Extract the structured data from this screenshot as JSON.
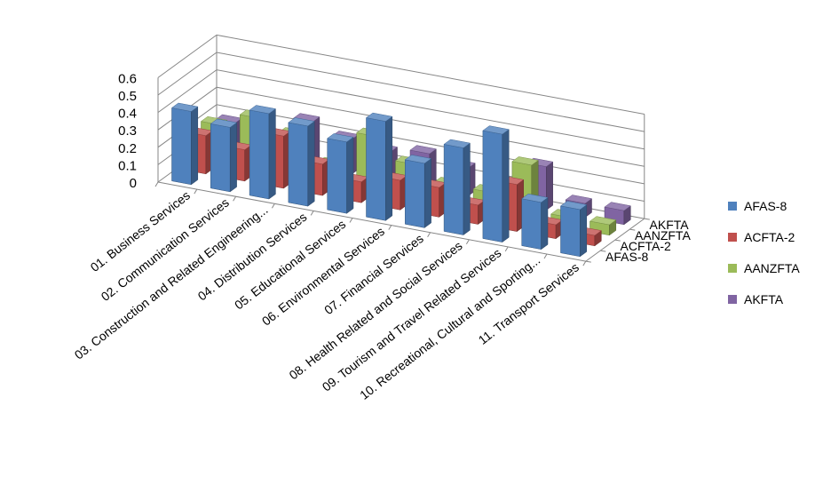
{
  "chart_data": {
    "type": "bar",
    "title": "",
    "xlabel": "",
    "ylabel": "",
    "ylim": [
      0,
      0.6
    ],
    "y_ticks": [
      "0",
      "0.1",
      "0.2",
      "0.3",
      "0.4",
      "0.5",
      "0.6"
    ],
    "grid": true,
    "legend_position": "right",
    "categories": [
      "01. Business Services",
      "02. Communication Services",
      "03. Construction and Related Engineering...",
      "04. Distribution Services",
      "05. Educational Services",
      "06. Environmental Services",
      "07. Financial Services",
      "08. Health Related and Social Services",
      "09. Tourism and Travel Related Services",
      "10. Recreational, Cultural and Sporting...",
      "11. Transport Services"
    ],
    "depth_labels": [
      "AFAS-8",
      "ACFTA-2",
      "AANZFTA",
      "AKFTA"
    ],
    "series": [
      {
        "name": "AFAS-8",
        "color": "#4f81bd",
        "values": [
          0.42,
          0.37,
          0.49,
          0.46,
          0.41,
          0.57,
          0.37,
          0.5,
          0.62,
          0.27,
          0.27
        ]
      },
      {
        "name": "ACFTA-2",
        "color": "#c0504d",
        "values": [
          0.22,
          0.18,
          0.3,
          0.18,
          0.12,
          0.17,
          0.17,
          0.11,
          0.27,
          0.08,
          0.06
        ]
      },
      {
        "name": "AANZFTA",
        "color": "#9bbb59",
        "values": [
          0.22,
          0.3,
          0.24,
          0.11,
          0.32,
          0.2,
          0.12,
          0.12,
          0.32,
          0.06,
          0.06
        ]
      },
      {
        "name": "AKFTA",
        "color": "#8064a2",
        "values": [
          0.17,
          0.13,
          0.26,
          0.2,
          0.17,
          0.2,
          0.16,
          0.07,
          0.25,
          0.08,
          0.08
        ]
      }
    ]
  }
}
